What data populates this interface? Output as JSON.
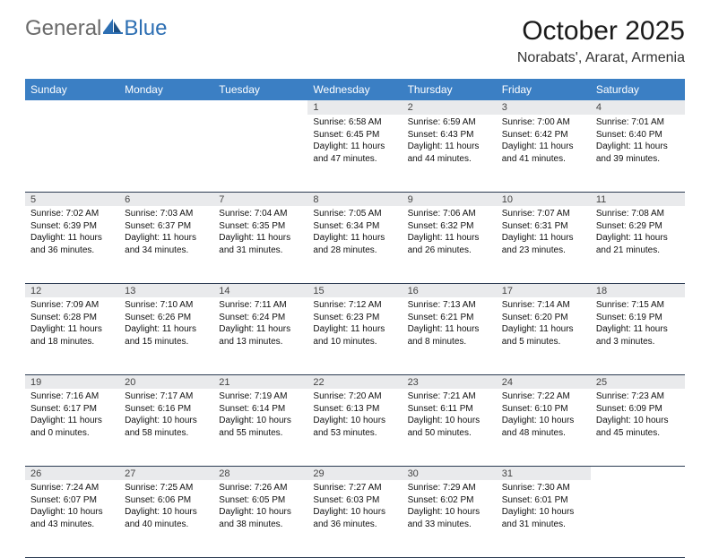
{
  "brand": {
    "general": "General",
    "blue": "Blue"
  },
  "title": "October 2025",
  "location": "Norabats', Ararat, Armenia",
  "weekdays": [
    "Sunday",
    "Monday",
    "Tuesday",
    "Wednesday",
    "Thursday",
    "Friday",
    "Saturday"
  ],
  "colors": {
    "header_bg": "#3b7fc4",
    "daynum_bg": "#e9eaec",
    "rule": "#2b3b52",
    "logo_blue": "#2d6fb3"
  },
  "weeks": [
    [
      null,
      null,
      null,
      {
        "n": "1",
        "sr": "Sunrise: 6:58 AM",
        "ss": "Sunset: 6:45 PM",
        "d1": "Daylight: 11 hours",
        "d2": "and 47 minutes."
      },
      {
        "n": "2",
        "sr": "Sunrise: 6:59 AM",
        "ss": "Sunset: 6:43 PM",
        "d1": "Daylight: 11 hours",
        "d2": "and 44 minutes."
      },
      {
        "n": "3",
        "sr": "Sunrise: 7:00 AM",
        "ss": "Sunset: 6:42 PM",
        "d1": "Daylight: 11 hours",
        "d2": "and 41 minutes."
      },
      {
        "n": "4",
        "sr": "Sunrise: 7:01 AM",
        "ss": "Sunset: 6:40 PM",
        "d1": "Daylight: 11 hours",
        "d2": "and 39 minutes."
      }
    ],
    [
      {
        "n": "5",
        "sr": "Sunrise: 7:02 AM",
        "ss": "Sunset: 6:39 PM",
        "d1": "Daylight: 11 hours",
        "d2": "and 36 minutes."
      },
      {
        "n": "6",
        "sr": "Sunrise: 7:03 AM",
        "ss": "Sunset: 6:37 PM",
        "d1": "Daylight: 11 hours",
        "d2": "and 34 minutes."
      },
      {
        "n": "7",
        "sr": "Sunrise: 7:04 AM",
        "ss": "Sunset: 6:35 PM",
        "d1": "Daylight: 11 hours",
        "d2": "and 31 minutes."
      },
      {
        "n": "8",
        "sr": "Sunrise: 7:05 AM",
        "ss": "Sunset: 6:34 PM",
        "d1": "Daylight: 11 hours",
        "d2": "and 28 minutes."
      },
      {
        "n": "9",
        "sr": "Sunrise: 7:06 AM",
        "ss": "Sunset: 6:32 PM",
        "d1": "Daylight: 11 hours",
        "d2": "and 26 minutes."
      },
      {
        "n": "10",
        "sr": "Sunrise: 7:07 AM",
        "ss": "Sunset: 6:31 PM",
        "d1": "Daylight: 11 hours",
        "d2": "and 23 minutes."
      },
      {
        "n": "11",
        "sr": "Sunrise: 7:08 AM",
        "ss": "Sunset: 6:29 PM",
        "d1": "Daylight: 11 hours",
        "d2": "and 21 minutes."
      }
    ],
    [
      {
        "n": "12",
        "sr": "Sunrise: 7:09 AM",
        "ss": "Sunset: 6:28 PM",
        "d1": "Daylight: 11 hours",
        "d2": "and 18 minutes."
      },
      {
        "n": "13",
        "sr": "Sunrise: 7:10 AM",
        "ss": "Sunset: 6:26 PM",
        "d1": "Daylight: 11 hours",
        "d2": "and 15 minutes."
      },
      {
        "n": "14",
        "sr": "Sunrise: 7:11 AM",
        "ss": "Sunset: 6:24 PM",
        "d1": "Daylight: 11 hours",
        "d2": "and 13 minutes."
      },
      {
        "n": "15",
        "sr": "Sunrise: 7:12 AM",
        "ss": "Sunset: 6:23 PM",
        "d1": "Daylight: 11 hours",
        "d2": "and 10 minutes."
      },
      {
        "n": "16",
        "sr": "Sunrise: 7:13 AM",
        "ss": "Sunset: 6:21 PM",
        "d1": "Daylight: 11 hours",
        "d2": "and 8 minutes."
      },
      {
        "n": "17",
        "sr": "Sunrise: 7:14 AM",
        "ss": "Sunset: 6:20 PM",
        "d1": "Daylight: 11 hours",
        "d2": "and 5 minutes."
      },
      {
        "n": "18",
        "sr": "Sunrise: 7:15 AM",
        "ss": "Sunset: 6:19 PM",
        "d1": "Daylight: 11 hours",
        "d2": "and 3 minutes."
      }
    ],
    [
      {
        "n": "19",
        "sr": "Sunrise: 7:16 AM",
        "ss": "Sunset: 6:17 PM",
        "d1": "Daylight: 11 hours",
        "d2": "and 0 minutes."
      },
      {
        "n": "20",
        "sr": "Sunrise: 7:17 AM",
        "ss": "Sunset: 6:16 PM",
        "d1": "Daylight: 10 hours",
        "d2": "and 58 minutes."
      },
      {
        "n": "21",
        "sr": "Sunrise: 7:19 AM",
        "ss": "Sunset: 6:14 PM",
        "d1": "Daylight: 10 hours",
        "d2": "and 55 minutes."
      },
      {
        "n": "22",
        "sr": "Sunrise: 7:20 AM",
        "ss": "Sunset: 6:13 PM",
        "d1": "Daylight: 10 hours",
        "d2": "and 53 minutes."
      },
      {
        "n": "23",
        "sr": "Sunrise: 7:21 AM",
        "ss": "Sunset: 6:11 PM",
        "d1": "Daylight: 10 hours",
        "d2": "and 50 minutes."
      },
      {
        "n": "24",
        "sr": "Sunrise: 7:22 AM",
        "ss": "Sunset: 6:10 PM",
        "d1": "Daylight: 10 hours",
        "d2": "and 48 minutes."
      },
      {
        "n": "25",
        "sr": "Sunrise: 7:23 AM",
        "ss": "Sunset: 6:09 PM",
        "d1": "Daylight: 10 hours",
        "d2": "and 45 minutes."
      }
    ],
    [
      {
        "n": "26",
        "sr": "Sunrise: 7:24 AM",
        "ss": "Sunset: 6:07 PM",
        "d1": "Daylight: 10 hours",
        "d2": "and 43 minutes."
      },
      {
        "n": "27",
        "sr": "Sunrise: 7:25 AM",
        "ss": "Sunset: 6:06 PM",
        "d1": "Daylight: 10 hours",
        "d2": "and 40 minutes."
      },
      {
        "n": "28",
        "sr": "Sunrise: 7:26 AM",
        "ss": "Sunset: 6:05 PM",
        "d1": "Daylight: 10 hours",
        "d2": "and 38 minutes."
      },
      {
        "n": "29",
        "sr": "Sunrise: 7:27 AM",
        "ss": "Sunset: 6:03 PM",
        "d1": "Daylight: 10 hours",
        "d2": "and 36 minutes."
      },
      {
        "n": "30",
        "sr": "Sunrise: 7:29 AM",
        "ss": "Sunset: 6:02 PM",
        "d1": "Daylight: 10 hours",
        "d2": "and 33 minutes."
      },
      {
        "n": "31",
        "sr": "Sunrise: 7:30 AM",
        "ss": "Sunset: 6:01 PM",
        "d1": "Daylight: 10 hours",
        "d2": "and 31 minutes."
      },
      null
    ]
  ]
}
